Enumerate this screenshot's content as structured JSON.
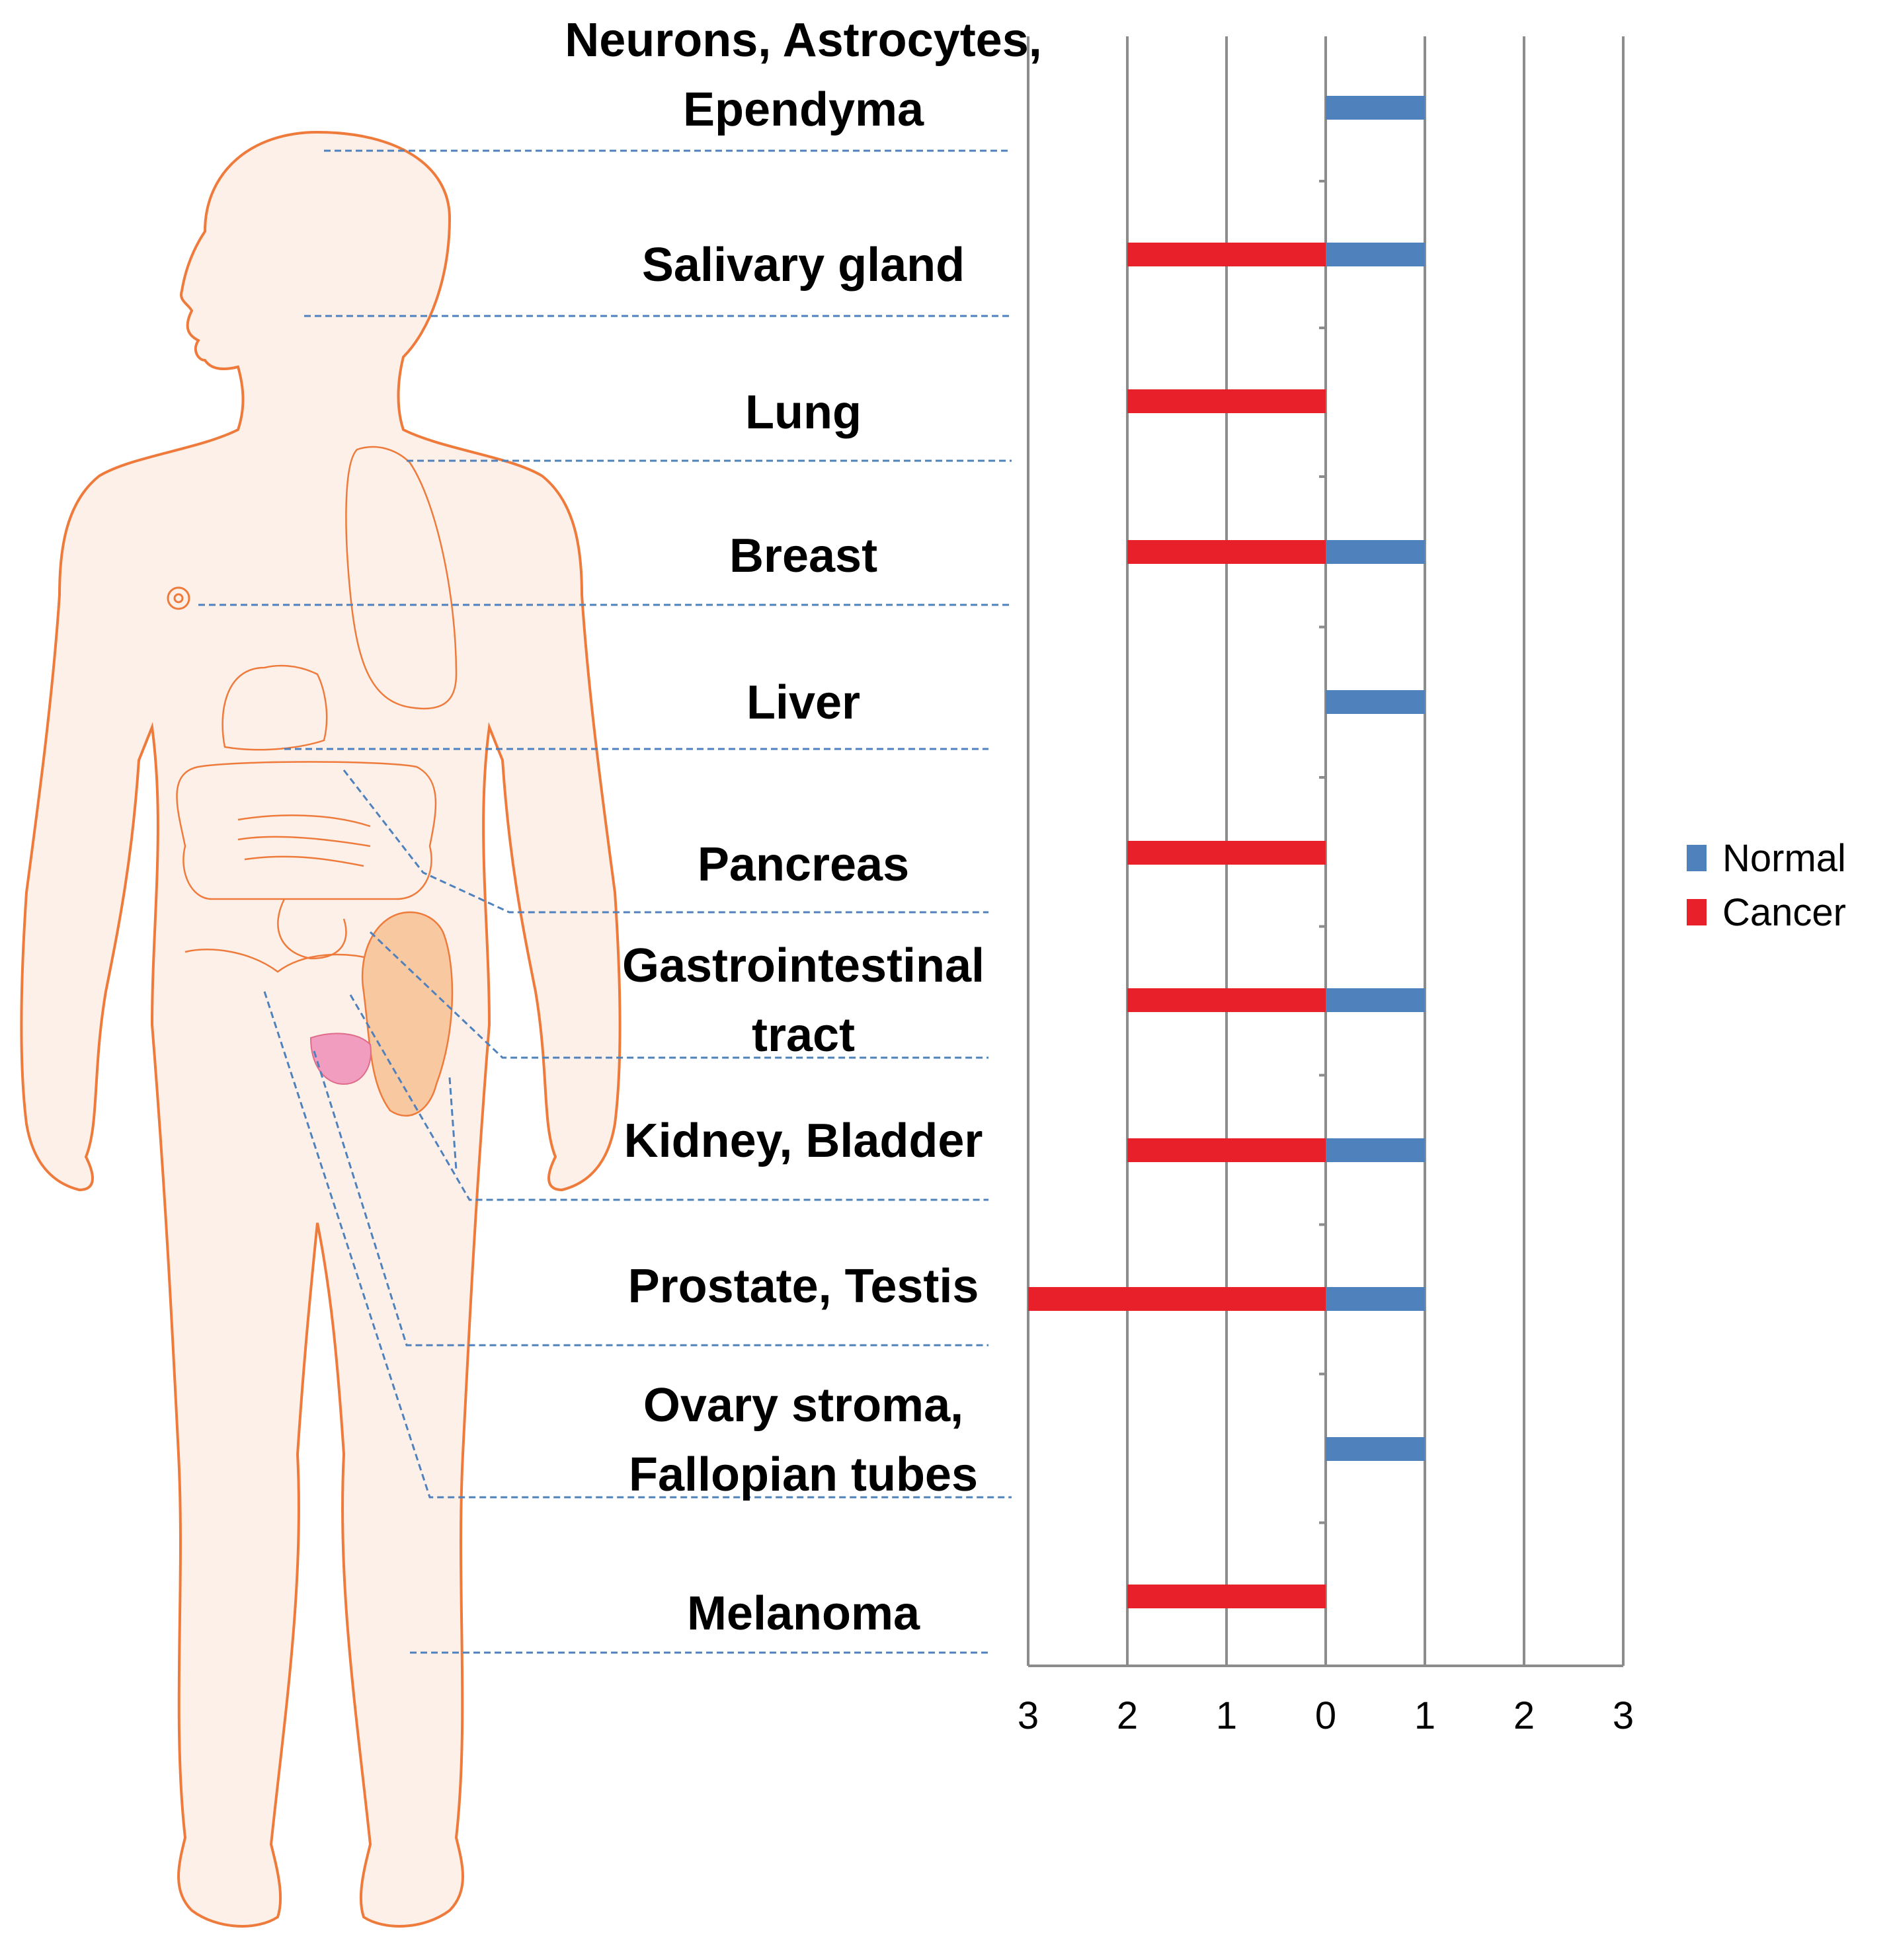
{
  "chart_data": {
    "type": "bar",
    "orientation": "horizontal-diverging",
    "categories": [
      "Neurons, Astrocytes, Ependyma",
      "Salivary gland",
      "Lung",
      "Breast",
      "Liver",
      "Pancreas",
      "Gastrointestinal tract",
      "Kidney, Bladder",
      "Prostate, Testis",
      "Ovary stroma, Fallopian tubes",
      "Melanoma"
    ],
    "category_lines": [
      [
        "Neurons, Astrocytes,",
        "Ependyma"
      ],
      [
        "Salivary gland"
      ],
      [
        "Lung"
      ],
      [
        "Breast"
      ],
      [
        "Liver"
      ],
      [
        "Pancreas"
      ],
      [
        "Gastrointestinal",
        "tract"
      ],
      [
        "Kidney, Bladder"
      ],
      [
        "Prostate, Testis"
      ],
      [
        "Ovary stroma,",
        "Fallopian tubes"
      ],
      [
        "Melanoma"
      ]
    ],
    "series": [
      {
        "name": "Normal",
        "color": "#4f81bd",
        "direction": "right",
        "values": [
          1,
          1,
          0,
          1,
          1,
          0,
          1,
          1,
          1,
          1,
          0
        ]
      },
      {
        "name": "Cancer",
        "color": "#e8202a",
        "direction": "left",
        "values": [
          0,
          2,
          2,
          2,
          0,
          2,
          2,
          2,
          3,
          0,
          2
        ]
      }
    ],
    "x_tick_labels": [
      "3",
      "2",
      "1",
      "0",
      "1",
      "2",
      "3"
    ],
    "xlim": [
      -3,
      3
    ],
    "legend_position": "right",
    "grid": true
  },
  "colors": {
    "normal": "#4f81bd",
    "cancer": "#e8202a",
    "body_outline": "#ee7b3c",
    "body_fill": "#fdf0e8",
    "leader_line": "#4f81bd"
  },
  "illustration": {
    "icon": "human-body-anatomy-icon"
  }
}
